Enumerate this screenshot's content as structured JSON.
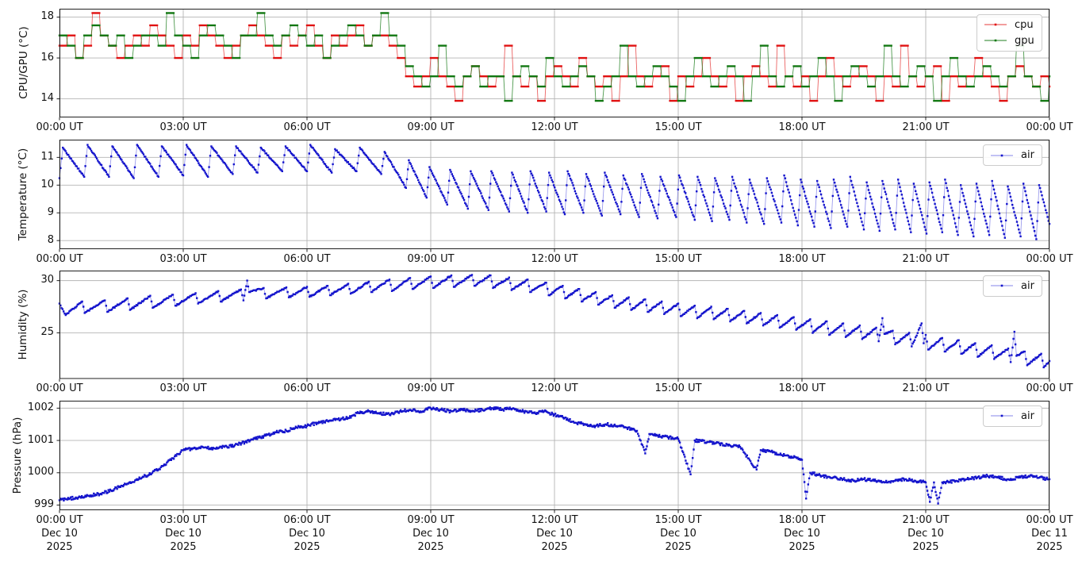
{
  "figure": {
    "background": "#ffffff"
  },
  "xaxis": {
    "tick_hours": [
      0,
      3,
      6,
      9,
      12,
      15,
      18,
      21,
      24
    ],
    "tick_labels": [
      "00:00 UT",
      "03:00 UT",
      "06:00 UT",
      "09:00 UT",
      "12:00 UT",
      "15:00 UT",
      "18:00 UT",
      "21:00 UT",
      "00:00 UT"
    ],
    "bottom_dates": [
      "Dec 10",
      "Dec 10",
      "Dec 10",
      "Dec 10",
      "Dec 10",
      "Dec 10",
      "Dec 10",
      "Dec 10",
      "Dec 11"
    ],
    "bottom_years": [
      "2025",
      "2025",
      "2025",
      "2025",
      "2025",
      "2025",
      "2025",
      "2025",
      "2025"
    ]
  },
  "colors": {
    "cpu_marker": "#e01010",
    "cpu_line": "rgba(224,16,16,0.65)",
    "gpu_marker": "#117711",
    "gpu_line": "rgba(17,119,17,0.75)",
    "air_marker": "#1414cc",
    "air_line": "rgba(60,60,220,0.5)",
    "grid": "#b4b4b4",
    "spine": "#202020"
  },
  "chart_data": [
    {
      "type": "line",
      "ylabel": "CPU/GPU (°C)",
      "ylim": [
        13.09,
        18.41
      ],
      "yticks": [
        14,
        16,
        18
      ],
      "xlim_hours": [
        0,
        24
      ],
      "grid": true,
      "legend": {
        "position": "upper right",
        "entries": [
          "cpu",
          "gpu"
        ]
      },
      "series": [
        {
          "name": "cpu",
          "color_key": "cpu",
          "step": true,
          "noise": 0,
          "marker_step_hours": 0.033,
          "dt_hours": 0.2,
          "y": [
            16.6,
            17.1,
            16.0,
            16.6,
            18.2,
            17.1,
            16.6,
            16.0,
            16.6,
            17.1,
            16.6,
            17.6,
            17.1,
            16.6,
            16.0,
            17.1,
            16.6,
            17.6,
            17.1,
            16.6,
            16.0,
            16.6,
            17.1,
            17.6,
            17.1,
            16.6,
            16.0,
            17.1,
            16.6,
            17.1,
            17.6,
            16.6,
            16.0,
            17.1,
            16.6,
            17.1,
            17.6,
            16.6,
            17.1,
            17.1,
            16.6,
            16.0,
            15.1,
            14.6,
            15.1,
            16.0,
            15.1,
            14.6,
            13.9,
            15.1,
            15.6,
            15.1,
            14.6,
            15.1,
            16.6,
            15.1,
            14.6,
            15.1,
            13.9,
            15.1,
            15.6,
            15.1,
            14.6,
            16.0,
            15.1,
            14.6,
            15.1,
            13.9,
            15.1,
            16.6,
            15.1,
            14.6,
            15.1,
            15.6,
            13.9,
            15.1,
            14.6,
            15.1,
            16.0,
            15.1,
            14.6,
            15.1,
            13.9,
            15.1,
            15.6,
            15.1,
            14.6,
            16.6,
            15.1,
            14.6,
            15.1,
            13.9,
            15.1,
            16.0,
            15.1,
            14.6,
            15.1,
            15.6,
            15.1,
            13.9,
            15.1,
            14.6,
            16.6,
            15.1,
            14.6,
            15.1,
            15.6,
            13.9,
            15.1,
            14.6,
            15.1,
            16.0,
            15.1,
            14.6,
            13.9,
            15.1,
            15.6,
            15.1,
            14.6,
            15.1,
            14.6
          ]
        },
        {
          "name": "gpu",
          "color_key": "gpu",
          "step": true,
          "noise": 0,
          "marker_step_hours": 0.033,
          "dt_hours": 0.2,
          "y": [
            17.1,
            16.6,
            16.0,
            17.1,
            17.6,
            17.1,
            16.6,
            17.1,
            16.0,
            16.6,
            17.1,
            17.1,
            16.6,
            18.2,
            17.1,
            16.6,
            16.0,
            17.1,
            17.6,
            17.1,
            16.6,
            16.0,
            17.1,
            17.1,
            18.2,
            17.1,
            16.6,
            17.1,
            17.6,
            17.1,
            16.6,
            17.1,
            16.0,
            16.6,
            17.1,
            17.6,
            17.1,
            16.6,
            17.1,
            18.2,
            17.1,
            16.6,
            15.6,
            15.1,
            14.6,
            15.1,
            16.6,
            15.1,
            14.6,
            15.1,
            15.6,
            14.6,
            15.1,
            15.1,
            13.9,
            15.1,
            15.6,
            15.1,
            14.6,
            16.0,
            15.1,
            14.6,
            15.1,
            15.6,
            15.1,
            13.9,
            14.6,
            15.1,
            16.6,
            15.1,
            14.6,
            15.1,
            15.6,
            15.1,
            14.6,
            13.9,
            15.1,
            16.0,
            15.1,
            14.6,
            15.1,
            15.6,
            15.1,
            13.9,
            15.1,
            16.6,
            15.1,
            14.6,
            15.1,
            15.6,
            14.6,
            15.1,
            16.0,
            15.1,
            13.9,
            15.1,
            15.6,
            15.1,
            14.6,
            15.1,
            16.6,
            15.1,
            14.6,
            15.1,
            15.6,
            15.1,
            13.9,
            15.1,
            16.0,
            15.1,
            14.6,
            15.1,
            15.6,
            15.1,
            14.6,
            15.1,
            16.6,
            15.1,
            14.6,
            13.9,
            15.1
          ]
        }
      ]
    },
    {
      "type": "line",
      "ylabel": "Temperature (°C)",
      "ylim": [
        7.69,
        11.64
      ],
      "yticks": [
        8,
        9,
        10,
        11
      ],
      "xlim_hours": [
        0,
        24
      ],
      "grid": true,
      "legend": {
        "position": "upper right",
        "entries": [
          "air"
        ]
      },
      "series": [
        {
          "name": "air",
          "color_key": "air",
          "step": false,
          "noise": 0.025,
          "marker_step_hours": 0.022,
          "x": [
            0,
            0.08,
            0.6,
            0.68,
            1.2,
            1.28,
            1.8,
            1.88,
            2.4,
            2.48,
            3.0,
            3.08,
            3.6,
            3.68,
            4.2,
            4.28,
            4.8,
            4.88,
            5.4,
            5.48,
            6.0,
            6.08,
            6.6,
            6.68,
            7.2,
            7.28,
            7.8,
            7.88,
            8.4,
            8.47,
            8.9,
            8.97,
            9.4,
            9.47,
            9.9,
            9.97,
            10.4,
            10.47,
            10.9,
            10.97,
            11.35,
            11.42,
            11.8,
            11.87,
            12.25,
            12.32,
            12.7,
            12.77,
            13.15,
            13.22,
            13.6,
            13.67,
            14.05,
            14.12,
            14.5,
            14.57,
            14.95,
            15.02,
            15.4,
            15.47,
            15.82,
            15.89,
            16.24,
            16.31,
            16.66,
            16.73,
            17.08,
            17.15,
            17.5,
            17.57,
            17.9,
            17.97,
            18.3,
            18.37,
            18.7,
            18.77,
            19.1,
            19.17,
            19.5,
            19.57,
            19.88,
            19.95,
            20.26,
            20.33,
            20.64,
            20.71,
            21.02,
            21.09,
            21.4,
            21.47,
            21.78,
            21.85,
            22.16,
            22.23,
            22.54,
            22.61,
            22.92,
            22.99,
            23.3,
            23.37,
            23.68,
            23.75,
            24.0
          ],
          "y": [
            10.25,
            11.35,
            10.3,
            11.45,
            10.3,
            11.4,
            10.25,
            11.45,
            10.3,
            11.4,
            10.35,
            11.45,
            10.3,
            11.4,
            10.4,
            11.4,
            10.45,
            11.35,
            10.5,
            11.4,
            10.5,
            11.45,
            10.45,
            11.3,
            10.5,
            11.35,
            10.4,
            11.2,
            9.9,
            10.9,
            9.55,
            10.65,
            9.3,
            10.55,
            9.15,
            10.5,
            9.1,
            10.5,
            9.05,
            10.45,
            9.0,
            10.5,
            9.05,
            10.45,
            8.95,
            10.5,
            9.0,
            10.4,
            8.9,
            10.45,
            8.95,
            10.35,
            8.85,
            10.4,
            8.8,
            10.3,
            8.85,
            10.35,
            8.75,
            10.3,
            8.7,
            10.25,
            8.75,
            10.3,
            8.65,
            10.2,
            8.6,
            10.25,
            8.65,
            10.35,
            8.55,
            10.2,
            8.5,
            10.15,
            8.45,
            10.2,
            8.5,
            10.3,
            8.4,
            10.1,
            8.35,
            10.15,
            8.4,
            10.2,
            8.3,
            10.05,
            8.25,
            10.1,
            8.3,
            10.2,
            8.2,
            10.0,
            8.15,
            10.05,
            8.2,
            10.15,
            8.1,
            9.95,
            8.15,
            10.05,
            8.05,
            10.0,
            8.6
          ]
        }
      ]
    },
    {
      "type": "line",
      "ylabel": "Humidity (%)",
      "ylim": [
        20.59,
        30.96
      ],
      "yticks": [
        25,
        30
      ],
      "xlim_hours": [
        0,
        24
      ],
      "grid": true,
      "legend": {
        "position": "upper right",
        "entries": [
          "air"
        ]
      },
      "series": [
        {
          "name": "air",
          "color_key": "air",
          "step": false,
          "noise": 0.07,
          "marker_step_hours": 0.022,
          "x": [
            0,
            0.15,
            0.55,
            0.61,
            1.1,
            1.16,
            1.65,
            1.71,
            2.2,
            2.26,
            2.75,
            2.81,
            3.3,
            3.36,
            3.85,
            3.91,
            4.4,
            4.46,
            4.55,
            4.6,
            4.95,
            5.01,
            5.5,
            5.56,
            6.0,
            6.06,
            6.5,
            6.56,
            7.0,
            7.06,
            7.5,
            7.56,
            8.0,
            8.06,
            8.5,
            8.56,
            9.0,
            9.06,
            9.5,
            9.56,
            10.0,
            10.06,
            10.45,
            10.51,
            10.9,
            10.96,
            11.35,
            11.41,
            11.8,
            11.86,
            12.2,
            12.26,
            12.6,
            12.66,
            13.0,
            13.06,
            13.4,
            13.46,
            13.8,
            13.86,
            14.2,
            14.26,
            14.6,
            14.66,
            15.0,
            15.06,
            15.4,
            15.46,
            15.8,
            15.86,
            16.2,
            16.26,
            16.6,
            16.66,
            17.0,
            17.06,
            17.4,
            17.46,
            17.8,
            17.86,
            18.2,
            18.26,
            18.6,
            18.66,
            19.0,
            19.06,
            19.4,
            19.46,
            19.8,
            19.86,
            19.95,
            20.0,
            20.2,
            20.26,
            20.6,
            20.66,
            20.9,
            20.95,
            21.0,
            21.06,
            21.4,
            21.46,
            21.8,
            21.86,
            22.2,
            22.26,
            22.6,
            22.66,
            23.0,
            23.06,
            23.15,
            23.2,
            23.4,
            23.46,
            23.8,
            23.86,
            24.0
          ],
          "y": [
            27.8,
            26.7,
            28.0,
            26.9,
            28.1,
            27.0,
            28.3,
            27.2,
            28.55,
            27.4,
            28.65,
            27.6,
            28.8,
            27.8,
            29.0,
            28.0,
            29.15,
            28.1,
            30.0,
            28.9,
            29.3,
            28.3,
            29.35,
            28.4,
            29.4,
            28.45,
            29.5,
            28.6,
            29.7,
            28.75,
            29.9,
            28.9,
            30.1,
            29.0,
            30.25,
            29.2,
            30.4,
            29.3,
            30.5,
            29.4,
            30.55,
            29.5,
            30.5,
            29.3,
            30.3,
            29.1,
            30.1,
            28.9,
            29.8,
            28.6,
            29.5,
            28.3,
            29.2,
            28.0,
            28.9,
            27.7,
            28.6,
            27.4,
            28.4,
            27.2,
            28.2,
            27.0,
            28.0,
            26.8,
            27.8,
            26.6,
            27.6,
            26.4,
            27.5,
            26.3,
            27.3,
            26.1,
            27.1,
            25.9,
            26.9,
            25.7,
            26.7,
            25.5,
            26.5,
            25.3,
            26.3,
            25.0,
            26.1,
            24.8,
            25.9,
            24.6,
            25.7,
            24.4,
            25.5,
            24.2,
            26.4,
            24.9,
            25.2,
            23.9,
            25.0,
            23.7,
            25.9,
            24.0,
            24.8,
            23.4,
            24.5,
            23.2,
            24.3,
            23.0,
            24.0,
            22.7,
            23.8,
            22.5,
            23.5,
            22.2,
            25.1,
            22.8,
            23.2,
            21.9,
            23.0,
            21.7,
            22.3
          ]
        }
      ]
    },
    {
      "type": "line",
      "ylabel": "Pressure (hPa)",
      "ylim": [
        998.84,
        1002.23
      ],
      "yticks": [
        999,
        1000,
        1001,
        1002
      ],
      "xlim_hours": [
        0,
        24
      ],
      "grid": true,
      "legend": {
        "position": "upper right",
        "entries": [
          "air"
        ]
      },
      "series": [
        {
          "name": "air",
          "color_key": "air",
          "step": false,
          "noise": 0.045,
          "marker_step_hours": 0.02,
          "x": [
            0,
            0.25,
            0.5,
            0.75,
            1.0,
            1.25,
            1.5,
            1.75,
            2.0,
            2.25,
            2.5,
            2.75,
            3.0,
            3.25,
            3.5,
            3.75,
            4.0,
            4.25,
            4.5,
            4.75,
            5.0,
            5.25,
            5.5,
            5.75,
            6.0,
            6.25,
            6.5,
            6.75,
            7.0,
            7.25,
            7.5,
            7.75,
            8.0,
            8.25,
            8.5,
            8.75,
            9.0,
            9.25,
            9.5,
            9.75,
            10.0,
            10.25,
            10.5,
            10.75,
            11.0,
            11.25,
            11.5,
            11.75,
            12.0,
            12.25,
            12.5,
            12.75,
            13.0,
            13.25,
            13.5,
            13.75,
            14.0,
            14.2,
            14.3,
            14.5,
            14.75,
            15.0,
            15.3,
            15.4,
            15.75,
            16.0,
            16.25,
            16.5,
            16.9,
            17.0,
            17.25,
            17.5,
            17.75,
            18.0,
            18.1,
            18.2,
            18.5,
            18.75,
            19.0,
            19.25,
            19.5,
            19.75,
            20.0,
            20.25,
            20.5,
            20.75,
            21.0,
            21.1,
            21.2,
            21.3,
            21.4,
            21.75,
            22.0,
            22.25,
            22.5,
            22.75,
            23.0,
            23.25,
            23.5,
            23.75,
            24.0
          ],
          "y": [
            999.15,
            999.2,
            999.25,
            999.3,
            999.35,
            999.45,
            999.6,
            999.7,
            999.85,
            1000.0,
            1000.2,
            1000.45,
            1000.7,
            1000.75,
            1000.78,
            1000.75,
            1000.8,
            1000.85,
            1000.95,
            1001.05,
            1001.15,
            1001.25,
            1001.3,
            1001.4,
            1001.45,
            1001.55,
            1001.6,
            1001.65,
            1001.7,
            1001.85,
            1001.9,
            1001.85,
            1001.8,
            1001.9,
            1001.95,
            1001.9,
            1002.0,
            1001.95,
            1001.9,
            1001.95,
            1001.9,
            1001.95,
            1002.0,
            1001.95,
            1002.0,
            1001.9,
            1001.85,
            1001.9,
            1001.8,
            1001.7,
            1001.55,
            1001.5,
            1001.45,
            1001.5,
            1001.45,
            1001.4,
            1001.3,
            1000.6,
            1001.2,
            1001.15,
            1001.1,
            1001.05,
            999.95,
            1001.0,
            1000.95,
            1000.9,
            1000.85,
            1000.8,
            1000.1,
            1000.7,
            1000.65,
            1000.55,
            1000.5,
            1000.4,
            999.2,
            1000.0,
            999.9,
            999.85,
            999.8,
            999.75,
            999.8,
            999.75,
            999.7,
            999.75,
            999.8,
            999.75,
            999.7,
            999.1,
            999.7,
            999.05,
            999.7,
            999.75,
            999.8,
            999.85,
            999.9,
            999.85,
            999.8,
            999.85,
            999.9,
            999.85,
            999.8
          ]
        }
      ]
    }
  ]
}
